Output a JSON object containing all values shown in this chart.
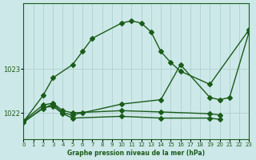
{
  "background_color": "#cde8e8",
  "plot_bg_color": "#cde8e8",
  "grid_color": "#aacccc",
  "line_color": "#1a5c1a",
  "xlabel": "Graphe pression niveau de la mer (hPa)",
  "ylim": [
    1021.4,
    1024.5
  ],
  "xlim": [
    0,
    23
  ],
  "yticks": [
    1022,
    1023
  ],
  "xticks": [
    0,
    1,
    2,
    3,
    4,
    5,
    6,
    7,
    8,
    9,
    10,
    11,
    12,
    13,
    14,
    15,
    16,
    17,
    18,
    19,
    20,
    21,
    22,
    23
  ],
  "s1_x": [
    0,
    2,
    3,
    5,
    6,
    7,
    10,
    11,
    12,
    13,
    14,
    15,
    16,
    19,
    23
  ],
  "s1_y": [
    1021.8,
    1022.4,
    1022.8,
    1023.1,
    1023.4,
    1023.7,
    1024.05,
    1024.1,
    1024.05,
    1023.85,
    1023.4,
    1023.15,
    1022.95,
    1022.65,
    1023.9
  ],
  "s2_x": [
    0,
    2,
    3,
    4,
    5,
    6,
    10,
    14,
    16,
    19,
    20,
    21,
    23
  ],
  "s2_y": [
    1021.8,
    1022.1,
    1022.2,
    1022.0,
    1021.95,
    1022.0,
    1022.2,
    1022.3,
    1023.1,
    1022.35,
    1022.3,
    1022.35,
    1023.85
  ],
  "s3_x": [
    0,
    2,
    3,
    4,
    5,
    10,
    14,
    19,
    20
  ],
  "s3_y": [
    1021.82,
    1022.18,
    1022.22,
    1022.05,
    1022.0,
    1022.05,
    1022.02,
    1021.98,
    1021.95
  ],
  "s4_x": [
    0,
    2,
    3,
    4,
    5,
    10,
    14,
    19,
    20
  ],
  "s4_y": [
    1021.78,
    1022.12,
    1022.15,
    1021.98,
    1021.88,
    1021.92,
    1021.88,
    1021.88,
    1021.85
  ]
}
